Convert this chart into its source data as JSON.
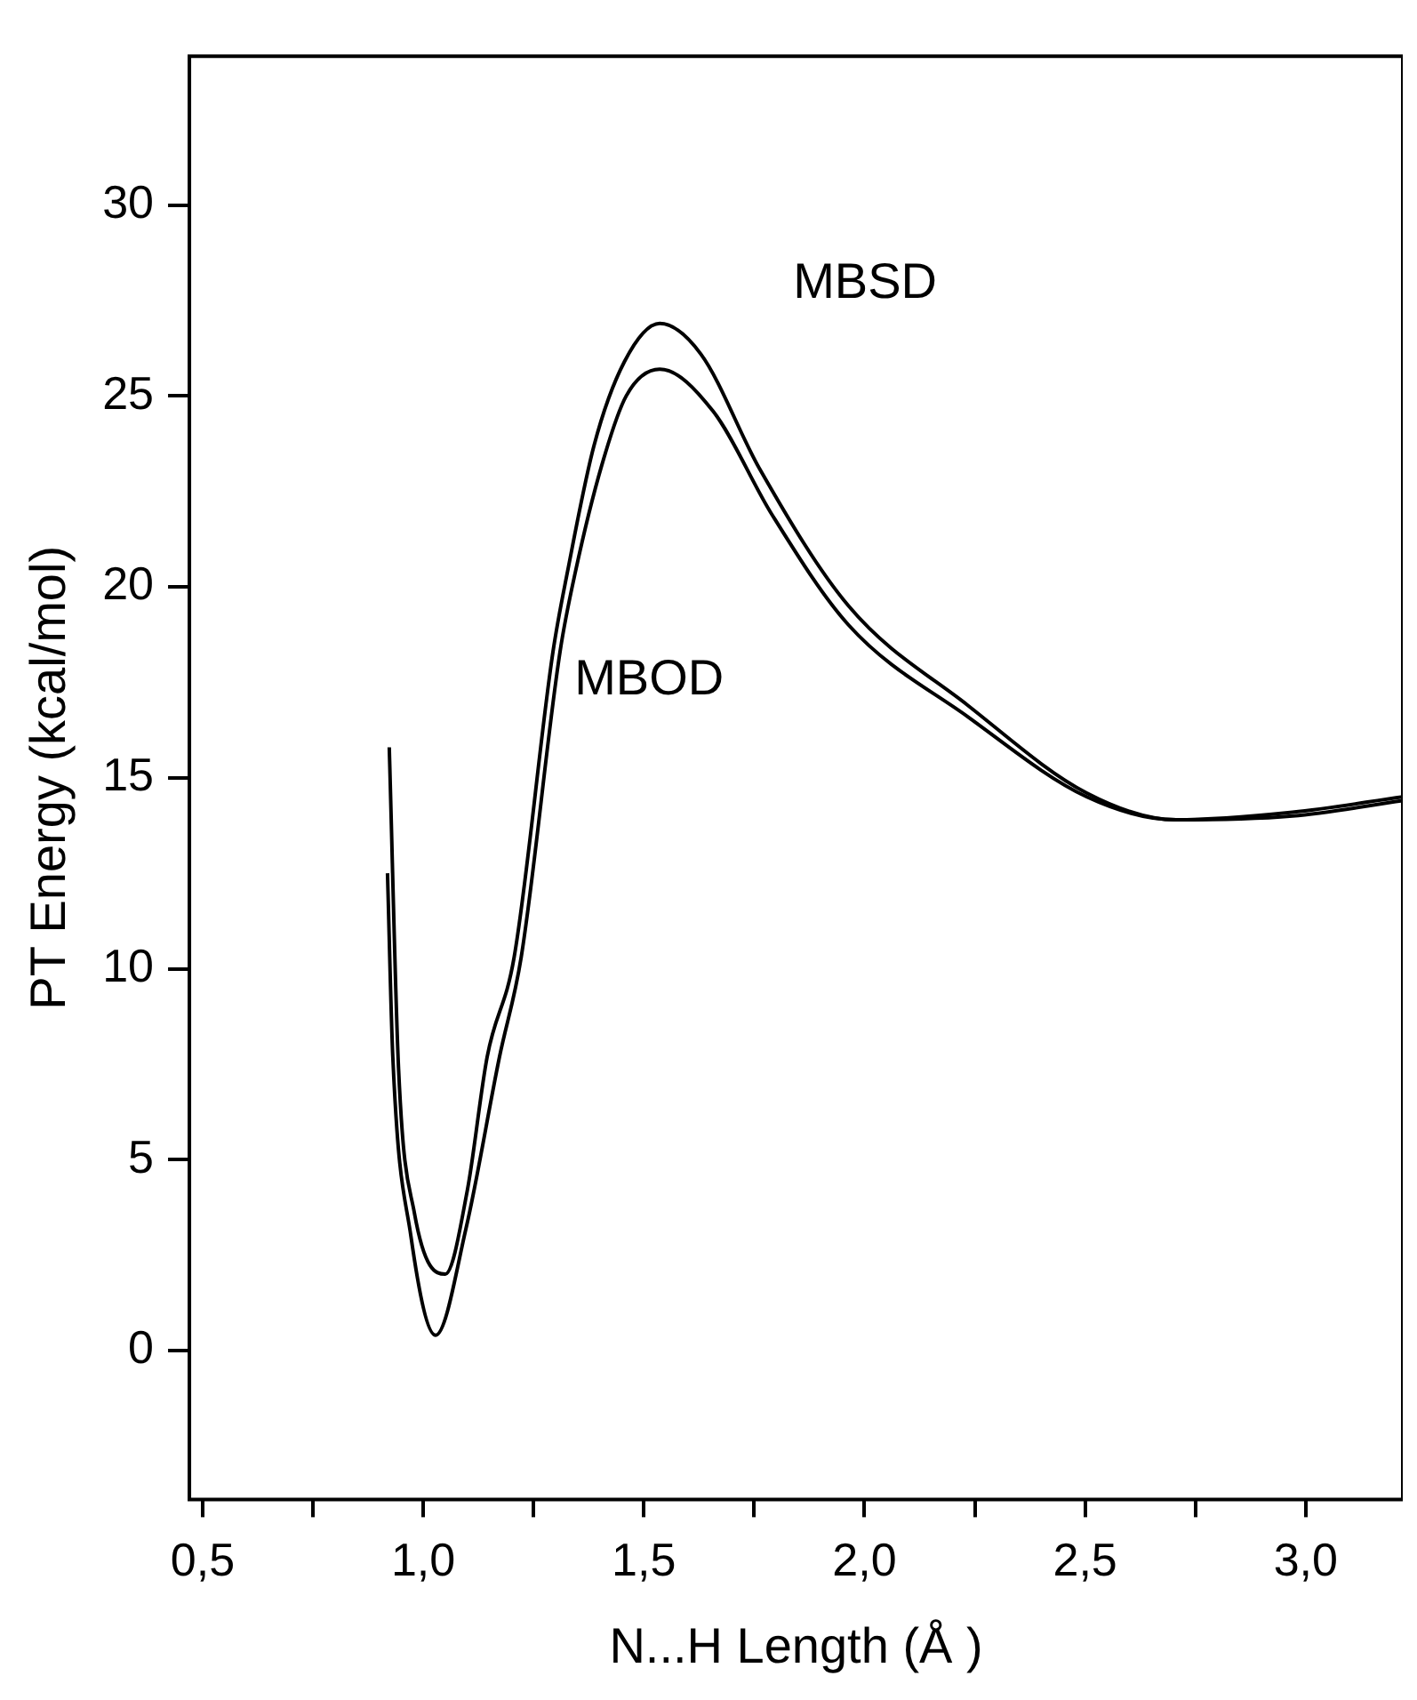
{
  "chart_data": {
    "type": "line",
    "xlabel": "N...H Length (Å )",
    "ylabel": "PT Energy (kcal/mol)",
    "xlim": [
      0.47,
      3.22
    ],
    "ylim": [
      -3.9,
      33.9
    ],
    "xticks": [
      {
        "value": 0.5,
        "label": "0,5"
      },
      {
        "value": 0.75,
        "label": null
      },
      {
        "value": 1.0,
        "label": "1,0"
      },
      {
        "value": 1.25,
        "label": null
      },
      {
        "value": 1.5,
        "label": "1,5"
      },
      {
        "value": 1.75,
        "label": null
      },
      {
        "value": 2.0,
        "label": "2,0"
      },
      {
        "value": 2.25,
        "label": null
      },
      {
        "value": 2.5,
        "label": "2,5"
      },
      {
        "value": 2.75,
        "label": null
      },
      {
        "value": 3.0,
        "label": "3,0"
      }
    ],
    "yticks": [
      0,
      5,
      10,
      15,
      20,
      25,
      30
    ],
    "grid": false,
    "legend": false,
    "marker": "none",
    "line_style": "solid",
    "series": [
      {
        "name": "MBSD",
        "color": "#000000",
        "x": [
          0.923,
          0.944,
          0.98,
          1.05,
          1.1,
          1.145,
          1.206,
          1.294,
          1.327,
          1.387,
          1.456,
          1.536,
          1.629,
          1.762,
          1.964,
          2.234,
          2.504,
          2.706,
          2.97,
          3.22
        ],
        "values": [
          15.8,
          7.4,
          3.6,
          2.0,
          4.2,
          7.7,
          10.3,
          18.3,
          20.4,
          23.7,
          25.9,
          26.9,
          26.1,
          23.1,
          19.5,
          16.9,
          14.6,
          13.9,
          14.1,
          14.5
        ]
      },
      {
        "name": "MBOD",
        "color": "#000000",
        "x": [
          0.919,
          0.931,
          0.972,
          1.028,
          1.097,
          1.173,
          1.222,
          1.31,
          1.345,
          1.405,
          1.46,
          1.536,
          1.657,
          1.79,
          1.964,
          2.234,
          2.504,
          2.706,
          2.97,
          3.22
        ],
        "values": [
          12.5,
          7.7,
          3.0,
          0.4,
          3.2,
          7.7,
          10.3,
          18.3,
          20.4,
          23.2,
          25.0,
          25.7,
          24.6,
          21.9,
          19.0,
          16.6,
          14.5,
          13.9,
          14.0,
          14.4
        ]
      }
    ]
  }
}
